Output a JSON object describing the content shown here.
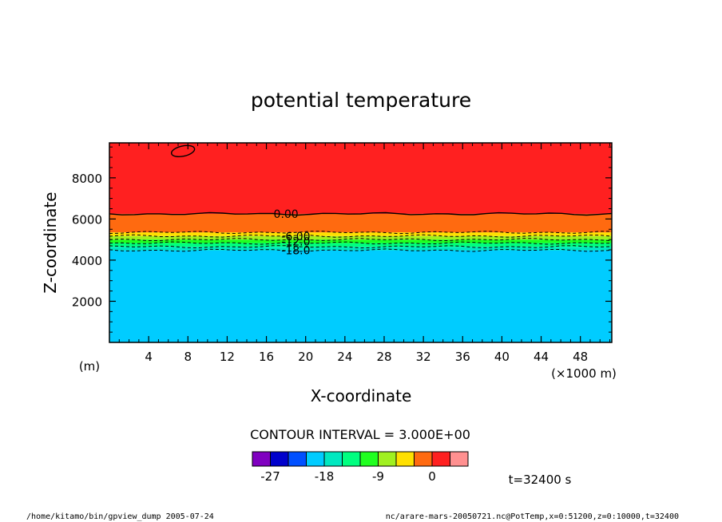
{
  "chart_data": {
    "type": "contour",
    "title": "potential temperature",
    "xlabel": "X-coordinate",
    "ylabel": "Z-coordinate",
    "x_unit_label": "(×1000 m)",
    "y_unit_label": "(m)",
    "xlim": [
      0,
      51.2
    ],
    "ylim": [
      0,
      9700
    ],
    "x_ticks": [
      4,
      8,
      12,
      16,
      20,
      24,
      28,
      32,
      36,
      40,
      44,
      48
    ],
    "x_tick_labels": [
      "4",
      "8",
      "12",
      "16",
      "20",
      "24",
      "28",
      "32",
      "36",
      "40",
      "44",
      "48"
    ],
    "y_ticks": [
      2000,
      4000,
      6000,
      8000
    ],
    "y_tick_labels": [
      "2000",
      "4000",
      "6000",
      "8000"
    ],
    "grid": false,
    "contour_interval_text": "CONTOUR INTERVAL = 3.000E+00",
    "contour_interval": 3.0,
    "fill_bands": [
      {
        "z0": 0,
        "z1": 4480,
        "color": "#00ccff",
        "level": "-21 to -18"
      },
      {
        "z0": 4480,
        "z1": 4650,
        "color": "#00e8c0",
        "level": "-18 to -15"
      },
      {
        "z0": 4650,
        "z1": 4830,
        "color": "#00ff80",
        "level": "-15 to -12"
      },
      {
        "z0": 4830,
        "z1": 5000,
        "color": "#20ff20",
        "level": "-12 to -9"
      },
      {
        "z0": 5000,
        "z1": 5170,
        "color": "#a0f020",
        "level": "-9 to -6"
      },
      {
        "z0": 5170,
        "z1": 5350,
        "color": "#ffe000",
        "level": "-6 to -3"
      },
      {
        "z0": 5350,
        "z1": 6250,
        "color": "#ff6a10",
        "level": "-3 to 0"
      },
      {
        "z0": 6250,
        "z1": 9700,
        "color": "#ff2020",
        "level": "0 to 3"
      }
    ],
    "contours": [
      {
        "level": 0.0,
        "z": 6250,
        "dashed": false
      },
      {
        "level": -3.0,
        "z": 5350,
        "dashed": true
      },
      {
        "level": -6.0,
        "z": 5170,
        "dashed": true
      },
      {
        "level": -9.0,
        "z": 5000,
        "dashed": true
      },
      {
        "level": -12.0,
        "z": 4830,
        "dashed": true
      },
      {
        "level": -15.0,
        "z": 4650,
        "dashed": true
      },
      {
        "level": -18.0,
        "z": 4480,
        "dashed": true
      }
    ],
    "contour_labels": [
      {
        "text": "0.00",
        "x": 18.0,
        "z": 6250
      },
      {
        "text": "-6.00",
        "x": 19.0,
        "z": 5170
      },
      {
        "text": "-12.0",
        "x": 19.0,
        "z": 4900
      },
      {
        "text": "-18.0",
        "x": 19.0,
        "z": 4480
      }
    ],
    "closed_contour": {
      "level": 0.0,
      "x_center": 7.5,
      "z_center": 9300,
      "x_halfwidth": 1.2,
      "z_halfwidth": 250
    },
    "colorbar": {
      "colors": [
        "#8000c0",
        "#0000cc",
        "#0050ff",
        "#00ccff",
        "#00e8c0",
        "#00ff80",
        "#20ff20",
        "#a0f020",
        "#ffe000",
        "#ff6a10",
        "#ff2020",
        "#ff9090"
      ],
      "labels": [
        "-27",
        "-18",
        "-9",
        "0"
      ],
      "label_after_box": [
        1,
        4,
        7,
        10
      ]
    },
    "time_label": "t=32400 s"
  },
  "footer": {
    "left": "/home/kitamo/bin/gpview_dump  2005-07-24",
    "right": "nc/arare-mars-20050721.nc@PotTemp,x=0:51200,z=0:10000,t=32400"
  }
}
